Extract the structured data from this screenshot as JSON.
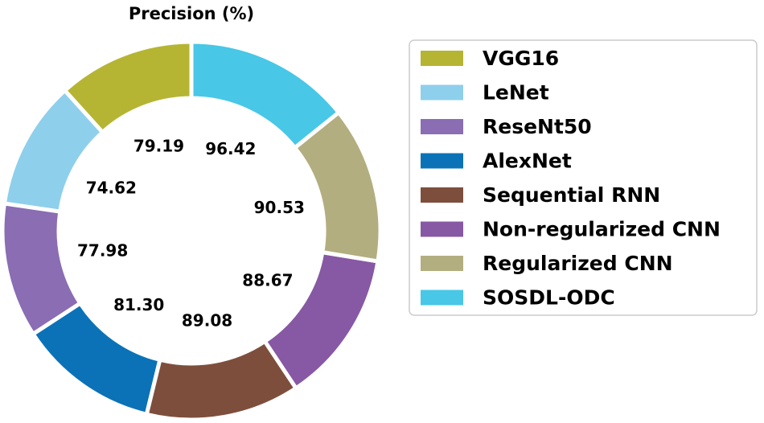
{
  "chart_data": {
    "type": "pie",
    "title": "Precision (%)",
    "categories": [
      "VGG16",
      "LeNet",
      "ReseNt50",
      "AlexNet",
      "Sequential RNN",
      "Non-regularized CNN",
      "Regularized CNN",
      "SOSDL-ODC"
    ],
    "values": [
      79.19,
      74.62,
      77.98,
      81.3,
      89.08,
      88.67,
      90.53,
      96.42
    ],
    "value_labels": [
      "79.19",
      "74.62",
      "77.98",
      "81.30",
      "89.08",
      "88.67",
      "90.53",
      "96.42"
    ],
    "colors": [
      "#b5b533",
      "#8ecfec",
      "#8a6db3",
      "#0b72b7",
      "#7e4e3d",
      "#8758a4",
      "#b3ae7f",
      "#48c7e7"
    ],
    "donut": true,
    "start_angle_deg": 90,
    "direction": "counterclockwise",
    "legend_position": "right"
  }
}
